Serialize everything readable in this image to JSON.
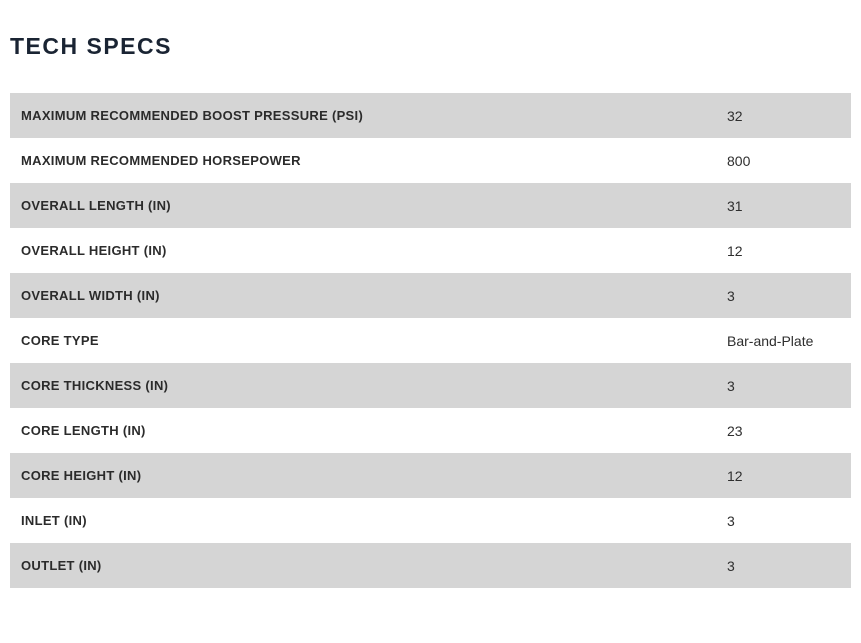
{
  "page": {
    "title": "TECH SPECS"
  },
  "colors": {
    "title_text": "#1a2433",
    "label_text": "#2b2b2b",
    "value_text": "#2e2e2e",
    "row_bg": "#ffffff",
    "row_alt_bg": "#d5d5d5",
    "page_bg": "#ffffff"
  },
  "specs_table": {
    "rows": [
      {
        "label": "MAXIMUM RECOMMENDED BOOST PRESSURE (PSI)",
        "value": "32"
      },
      {
        "label": "MAXIMUM RECOMMENDED HORSEPOWER",
        "value": "800"
      },
      {
        "label": "OVERALL LENGTH (IN)",
        "value": "31"
      },
      {
        "label": "OVERALL HEIGHT (IN)",
        "value": "12"
      },
      {
        "label": "OVERALL WIDTH (IN)",
        "value": "3"
      },
      {
        "label": "CORE TYPE",
        "value": "Bar-and-Plate"
      },
      {
        "label": "CORE THICKNESS (IN)",
        "value": "3"
      },
      {
        "label": "CORE LENGTH (IN)",
        "value": "23"
      },
      {
        "label": "CORE HEIGHT (IN)",
        "value": "12"
      },
      {
        "label": "INLET (IN)",
        "value": "3"
      },
      {
        "label": "OUTLET (IN)",
        "value": "3"
      }
    ]
  }
}
